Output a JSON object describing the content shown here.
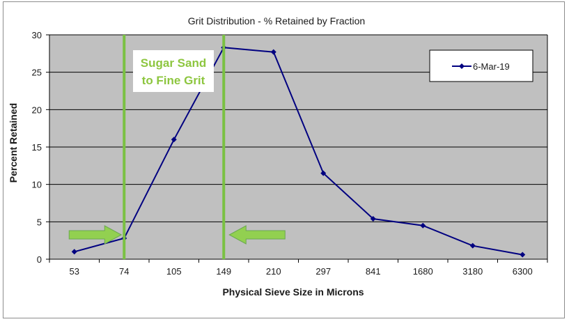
{
  "colors": {
    "plot_bg": "#c0c0c0",
    "series": "#000080",
    "marker_line": "#7ac143",
    "arrow_fill": "#92d050",
    "annotation_text": "#8dc63f"
  },
  "chart_data": {
    "type": "line",
    "title": "Grit Distribution - % Retained by Fraction",
    "xlabel": "Physical Sieve Size in Microns",
    "ylabel": "Percent Retained",
    "categories": [
      "53",
      "74",
      "105",
      "149",
      "210",
      "297",
      "841",
      "1680",
      "3180",
      "6300"
    ],
    "series": [
      {
        "name": "6-Mar-19",
        "values": [
          1.0,
          2.8,
          16.0,
          28.3,
          27.7,
          11.5,
          5.4,
          4.5,
          1.8,
          0.6
        ]
      }
    ],
    "ylim": [
      0,
      30
    ],
    "yticks": [
      "0",
      "5",
      "10",
      "15",
      "20",
      "25",
      "30"
    ],
    "grid": true,
    "legend": "top-right",
    "annotation": {
      "line1": "Sugar Sand",
      "line2": "to Fine Grit"
    },
    "highlight_range": [
      "74",
      "149"
    ],
    "arrows": [
      "right",
      "left"
    ]
  }
}
